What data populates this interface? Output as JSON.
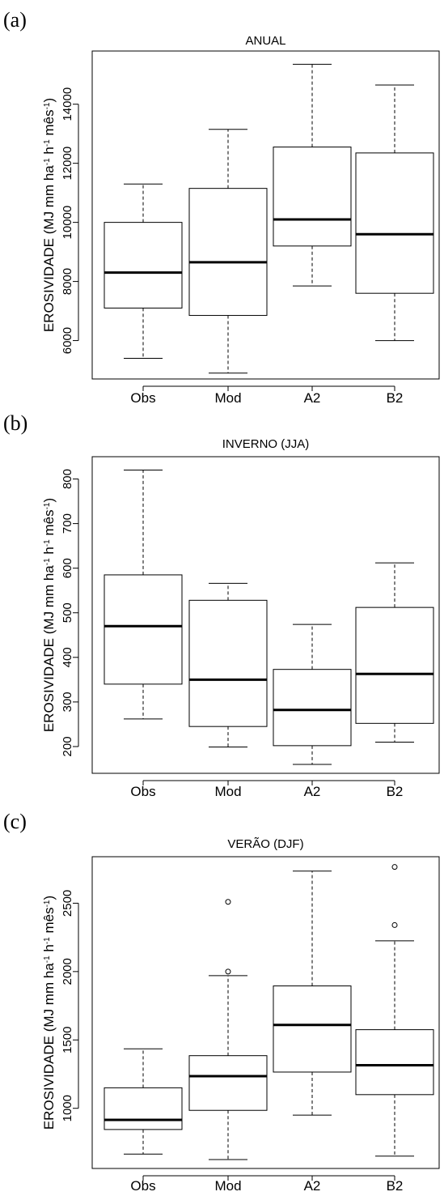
{
  "chart_data": [
    {
      "type": "box",
      "panel_label": "(a)",
      "title": "ANUAL",
      "categories": [
        "Obs",
        "Mod",
        "A2",
        "B2"
      ],
      "ylabel": "EROSIVIDADE (MJ mm ha-1 h-1 mês-1)",
      "ylim": [
        4700,
        15800
      ],
      "yticks": [
        6000,
        8000,
        10000,
        12000,
        14000
      ],
      "boxes": [
        {
          "name": "Obs",
          "whisker_low": 5400,
          "q1": 7100,
          "median": 8300,
          "q3": 10000,
          "whisker_high": 11300,
          "outliers": []
        },
        {
          "name": "Mod",
          "whisker_low": 4900,
          "q1": 6850,
          "median": 8650,
          "q3": 11150,
          "whisker_high": 13150,
          "outliers": []
        },
        {
          "name": "A2",
          "whisker_low": 7850,
          "q1": 9200,
          "median": 10100,
          "q3": 12550,
          "whisker_high": 15350,
          "outliers": []
        },
        {
          "name": "B2",
          "whisker_low": 6000,
          "q1": 7600,
          "median": 9600,
          "q3": 12350,
          "whisker_high": 14650,
          "outliers": []
        }
      ]
    },
    {
      "type": "box",
      "panel_label": "(b)",
      "title": "INVERNO (JJA)",
      "categories": [
        "Obs",
        "Mod",
        "A2",
        "B2"
      ],
      "ylabel": "EROSIVIDADE (MJ mm ha-1 h-1 mês-1)",
      "ylim": [
        140,
        850
      ],
      "yticks": [
        200,
        300,
        400,
        500,
        600,
        700,
        800
      ],
      "boxes": [
        {
          "name": "Obs",
          "whisker_low": 262,
          "q1": 340,
          "median": 470,
          "q3": 585,
          "whisker_high": 820,
          "outliers": []
        },
        {
          "name": "Mod",
          "whisker_low": 199,
          "q1": 245,
          "median": 350,
          "q3": 528,
          "whisker_high": 566,
          "outliers": []
        },
        {
          "name": "A2",
          "whisker_low": 160,
          "q1": 202,
          "median": 282,
          "q3": 373,
          "whisker_high": 474,
          "outliers": []
        },
        {
          "name": "B2",
          "whisker_low": 210,
          "q1": 252,
          "median": 363,
          "q3": 512,
          "whisker_high": 612,
          "outliers": []
        }
      ]
    },
    {
      "type": "box",
      "panel_label": "(c)",
      "title": "VERÃO (DJF)",
      "categories": [
        "Obs",
        "Mod",
        "A2",
        "B2"
      ],
      "ylabel": "EROSIVIDADE (MJ mm ha-1 h-1 mês-1)",
      "ylim": [
        560,
        2840
      ],
      "yticks": [
        1000,
        1500,
        2000,
        2500
      ],
      "boxes": [
        {
          "name": "Obs",
          "whisker_low": 665,
          "q1": 845,
          "median": 915,
          "q3": 1150,
          "whisker_high": 1435,
          "outliers": []
        },
        {
          "name": "Mod",
          "whisker_low": 625,
          "q1": 985,
          "median": 1235,
          "q3": 1385,
          "whisker_high": 1970,
          "outliers": [
            2000,
            2510
          ]
        },
        {
          "name": "A2",
          "whisker_low": 950,
          "q1": 1265,
          "median": 1610,
          "q3": 1895,
          "whisker_high": 2735,
          "outliers": []
        },
        {
          "name": "B2",
          "whisker_low": 650,
          "q1": 1100,
          "median": 1315,
          "q3": 1575,
          "whisker_high": 2225,
          "outliers": [
            2340,
            2765
          ]
        }
      ]
    }
  ]
}
